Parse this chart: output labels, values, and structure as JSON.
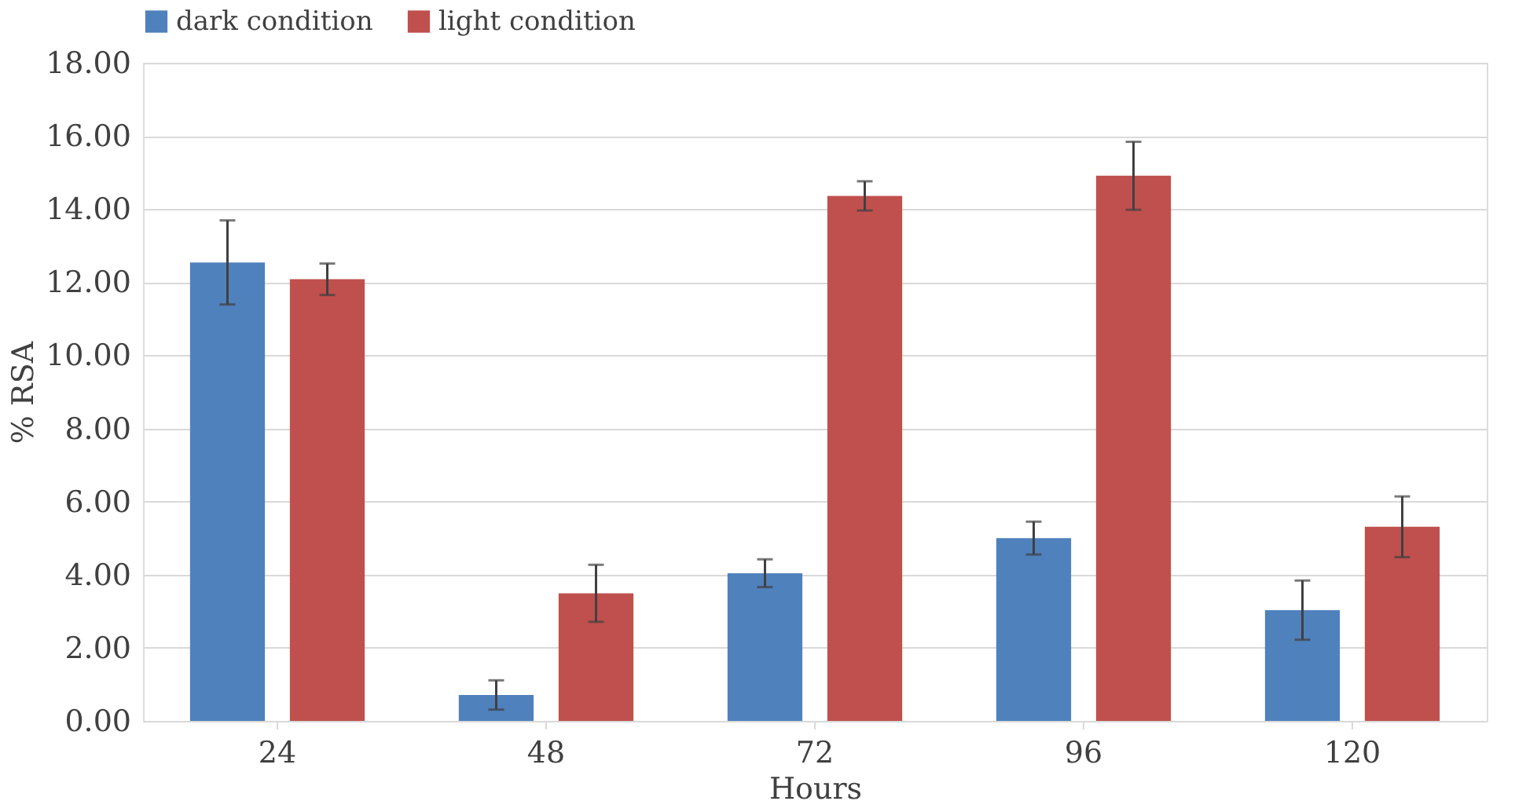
{
  "chart_data": {
    "type": "bar",
    "xlabel": "Hours",
    "ylabel": "% RSA",
    "categories": [
      "24",
      "48",
      "72",
      "96",
      "120"
    ],
    "series": [
      {
        "name": "dark condition",
        "color": "#4f81bd",
        "values": [
          12.54,
          0.71,
          4.04,
          5.0,
          3.03
        ],
        "errors": [
          1.15,
          0.4,
          0.38,
          0.45,
          0.81
        ]
      },
      {
        "name": "light condition",
        "color": "#c0504d",
        "values": [
          12.08,
          3.49,
          14.36,
          14.91,
          5.31
        ],
        "errors": [
          0.43,
          0.78,
          0.4,
          0.93,
          0.83
        ]
      }
    ],
    "ylim": [
      0,
      18
    ],
    "yticks": [
      {
        "value": 0,
        "label": "0.00"
      },
      {
        "value": 2,
        "label": "2.00"
      },
      {
        "value": 4,
        "label": "4.00"
      },
      {
        "value": 6,
        "label": "6.00"
      },
      {
        "value": 8,
        "label": "8.00"
      },
      {
        "value": 10,
        "label": "10.00"
      },
      {
        "value": 12,
        "label": "12.00"
      },
      {
        "value": 14,
        "label": "14.00"
      },
      {
        "value": 16,
        "label": "16.00"
      },
      {
        "value": 18,
        "label": "18.00"
      }
    ],
    "grid": "y",
    "legend": "top"
  }
}
